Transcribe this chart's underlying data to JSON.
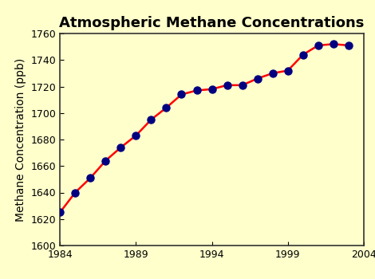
{
  "title": "Atmospheric Methane Concentrations",
  "ylabel": "Methane Concentration (ppb)",
  "years": [
    1984,
    1985,
    1986,
    1987,
    1988,
    1989,
    1990,
    1991,
    1992,
    1993,
    1994,
    1995,
    1996,
    1997,
    1998,
    1999,
    2000,
    2001,
    2002,
    2003
  ],
  "values": [
    1625,
    1640,
    1651,
    1664,
    1674,
    1683,
    1695,
    1704,
    1714,
    1717,
    1718,
    1721,
    1721,
    1726,
    1730,
    1732,
    1744,
    1751,
    1752,
    1751
  ],
  "xlim": [
    1984,
    2004
  ],
  "ylim": [
    1600,
    1760
  ],
  "xticks": [
    1984,
    1989,
    1994,
    1999,
    2004
  ],
  "yticks": [
    1600,
    1620,
    1640,
    1660,
    1680,
    1700,
    1720,
    1740,
    1760
  ],
  "line_color": "#ff0000",
  "marker_color": "#000080",
  "background_color": "#ffffcc",
  "figure_bg_color": "#ffffcc",
  "spine_color": "#333333",
  "title_fontsize": 13,
  "label_fontsize": 10,
  "tick_fontsize": 9,
  "line_width": 1.8,
  "marker_size": 6.5
}
